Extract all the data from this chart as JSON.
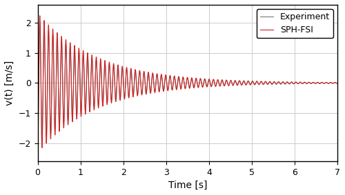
{
  "title": "",
  "xlabel": "Time [s]",
  "ylabel": "v(t) [m/s]",
  "xlim": [
    0,
    7
  ],
  "ylim": [
    -2.6,
    2.6
  ],
  "xticks": [
    0,
    1,
    2,
    3,
    4,
    5,
    6,
    7
  ],
  "yticks": [
    -2,
    -1,
    0,
    1,
    2
  ],
  "experiment_color": "#777777",
  "sph_fsi_color": "#cc2222",
  "experiment_label": "Experiment",
  "sph_fsi_label": "SPH-FSI",
  "sph_amplitude": 2.32,
  "sph_decay": 0.72,
  "sph_frequency": 62.0,
  "sph_phase": -1.5707963,
  "exp_amplitude": 2.08,
  "exp_decay": 0.72,
  "exp_frequency": 62.0,
  "exp_phase": -1.5707963,
  "t_end": 7.0,
  "num_points": 10000,
  "linewidth_experiment": 0.8,
  "linewidth_sph": 0.8,
  "legend_fontsize": 9,
  "tick_fontsize": 9,
  "label_fontsize": 10,
  "background_color": "#ffffff",
  "grid_color": "#cccccc"
}
